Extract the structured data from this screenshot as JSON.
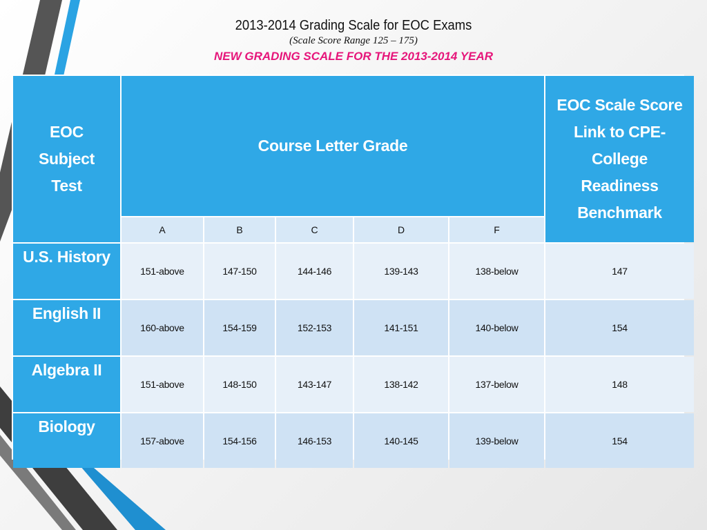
{
  "header": {
    "title": "2013-2014 Grading Scale for EOC Exams",
    "subtitle": "(Scale Score Range 125 – 175)",
    "notice": "NEW GRADING SCALE FOR THE 2013-2014 YEAR"
  },
  "table": {
    "subject_header_lines": [
      "EOC",
      "Subject",
      "Test"
    ],
    "course_header": "Course Letter Grade",
    "benchmark_header_lines": [
      "EOC Scale Score",
      "Link to  CPE-",
      "College",
      "Readiness",
      "Benchmark"
    ],
    "grades": [
      "A",
      "B",
      "C",
      "D",
      "F"
    ],
    "rows": [
      {
        "subject": "U.S. History",
        "scores": [
          "151-above",
          "147-150",
          "144-146",
          "139-143",
          "138-below"
        ],
        "benchmark": "147"
      },
      {
        "subject": "English II",
        "scores": [
          "160-above",
          "154-159",
          "152-153",
          "141-151",
          "140-below"
        ],
        "benchmark": "154"
      },
      {
        "subject": "Algebra II",
        "scores": [
          "151-above",
          "148-150",
          "143-147",
          "138-142",
          "137-below"
        ],
        "benchmark": "148"
      },
      {
        "subject": "Biology",
        "scores": [
          "157-above",
          "154-156",
          "146-153",
          "140-145",
          "139-below"
        ],
        "benchmark": "154"
      }
    ]
  },
  "colors": {
    "header_blue": "#2fa8e6",
    "cell_light": "#e7f0f9",
    "cell_mid": "#cfe2f4",
    "notice_pink": "#e6157a"
  }
}
